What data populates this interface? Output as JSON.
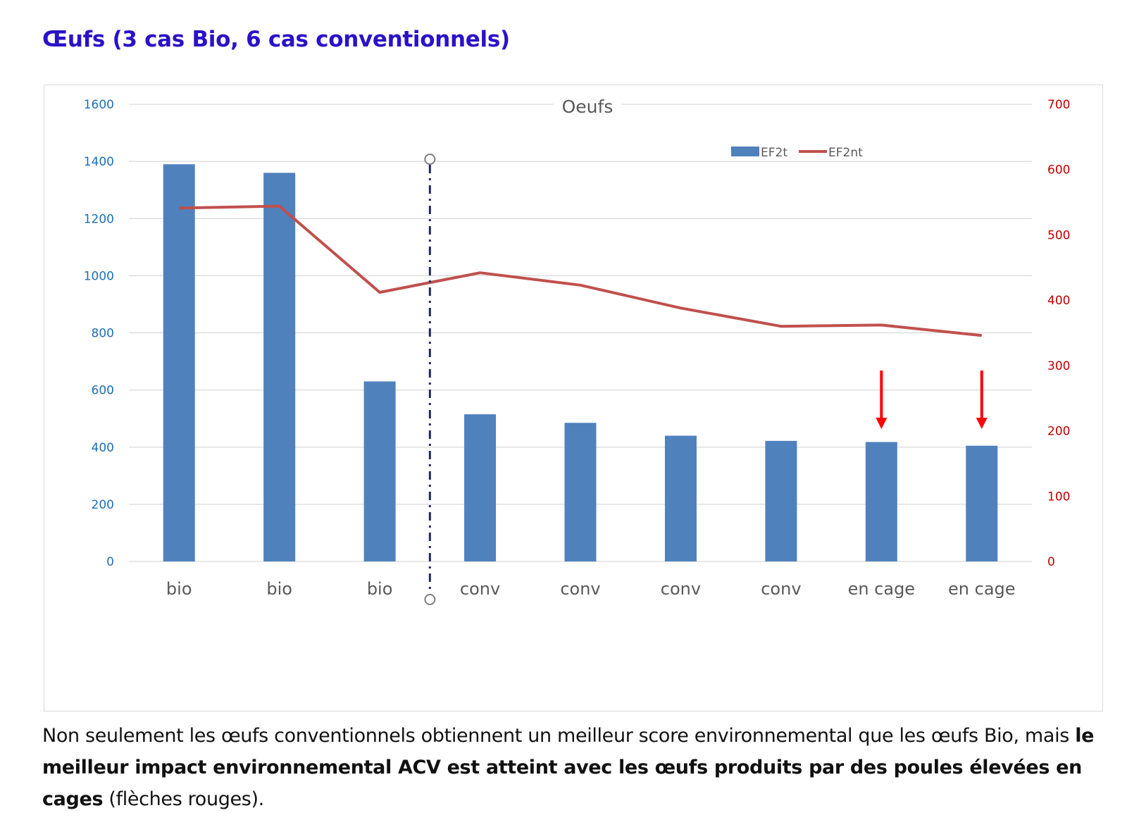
{
  "heading": "Œufs (3 cas Bio, 6 cas conventionnels)",
  "caption": {
    "part1": "Non seulement les œufs conventionnels obtiennent un meilleur score environnemental que les œufs Bio, mais ",
    "bold": "le meilleur impact environnemental ACV est atteint avec les œufs produits par des poules élevées en cages",
    "part2": " (flèches rouges)."
  },
  "colors": {
    "heading": "#2a12c8",
    "bar": "#4f81bd",
    "line": "#c0504d",
    "left_axis": "#1f6fb5",
    "right_axis": "#c00000",
    "arrow": "#ff0000",
    "divider": "#1f2a5a"
  },
  "chart_data": {
    "type": "bar",
    "title": "Oeufs",
    "categories": [
      "bio",
      "bio",
      "bio",
      "conv",
      "conv",
      "conv",
      "conv",
      "en cage",
      "en cage"
    ],
    "series": [
      {
        "name": "EF2t",
        "type": "bar",
        "axis": "left",
        "values": [
          1390,
          1360,
          630,
          515,
          485,
          440,
          422,
          418,
          405
        ]
      },
      {
        "name": "EF2nt",
        "type": "line",
        "axis": "right",
        "values": [
          541,
          544,
          412,
          442,
          423,
          388,
          360,
          362,
          346
        ]
      }
    ],
    "y_left": {
      "ylim": [
        0,
        1600
      ],
      "ticks": [
        0,
        200,
        400,
        600,
        800,
        1000,
        1200,
        1400,
        1600
      ]
    },
    "y_right": {
      "ylim": [
        0,
        700
      ],
      "ticks": [
        0,
        100,
        200,
        300,
        400,
        500,
        600,
        700
      ]
    },
    "grid": true,
    "legend_position": "top-right",
    "annotations": {
      "divider_between": [
        2,
        3
      ],
      "arrows_on_categories": [
        7,
        8
      ]
    }
  }
}
